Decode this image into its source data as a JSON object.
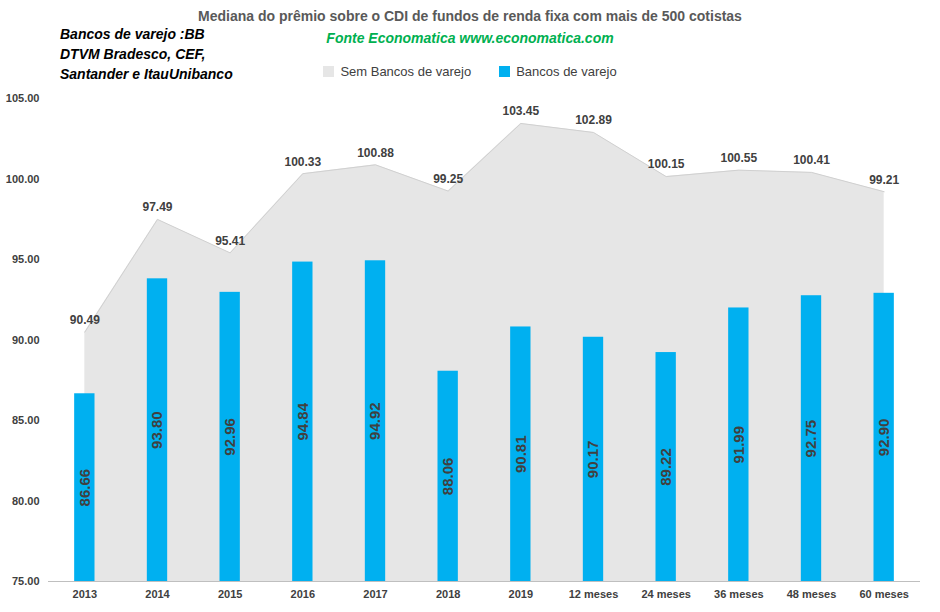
{
  "chart_data": {
    "type": "bar",
    "title": "Mediana do prêmio sobre o CDI de fundos de renda fixa com mais de 500 cotistas",
    "subtitle": "Fonte Economatica www.economatica.com",
    "annotations": [
      "Bancos de varejo :BB",
      "DTVM Bradesco, CEF,",
      "Santander e ItauUnibanco"
    ],
    "categories": [
      "2013",
      "2014",
      "2015",
      "2016",
      "2017",
      "2018",
      "2019",
      "12 meses",
      "24 meses",
      "36 meses",
      "48 meses",
      "60 meses"
    ],
    "series": [
      {
        "name": "Sem Bancos de varejo",
        "type": "area",
        "color": "#e6e6e6",
        "values": [
          90.49,
          97.49,
          95.41,
          100.33,
          100.88,
          99.25,
          103.45,
          102.89,
          100.15,
          100.55,
          100.41,
          99.21
        ],
        "value_labels": [
          "90.49",
          "97.49",
          "95.41",
          "100.33",
          "100.88",
          "99.25",
          "103.45",
          "102.89",
          "100.15",
          "100.55",
          "100.41",
          "99.21"
        ]
      },
      {
        "name": "Bancos de varejo",
        "type": "bar",
        "color": "#00b0f0",
        "values": [
          86.66,
          93.8,
          92.96,
          94.84,
          94.92,
          88.06,
          90.81,
          90.17,
          89.22,
          91.99,
          92.75,
          92.9
        ],
        "value_labels": [
          "86.66",
          "93.80",
          "92.96",
          "94.84",
          "94.92",
          "88.06",
          "90.81",
          "90.17",
          "89.22",
          "91.99",
          "92.75",
          "92.90"
        ]
      }
    ],
    "ylim": [
      75,
      105
    ],
    "yticks": [
      {
        "value": 75,
        "label": "75.00"
      },
      {
        "value": 80,
        "label": "80.00"
      },
      {
        "value": 85,
        "label": "85.00"
      },
      {
        "value": 90,
        "label": "90.00"
      },
      {
        "value": 95,
        "label": "95.00"
      },
      {
        "value": 100,
        "label": "100.00"
      },
      {
        "value": 105,
        "label": "105.00"
      }
    ],
    "grid": false,
    "legend": "top",
    "data_labels": true
  }
}
